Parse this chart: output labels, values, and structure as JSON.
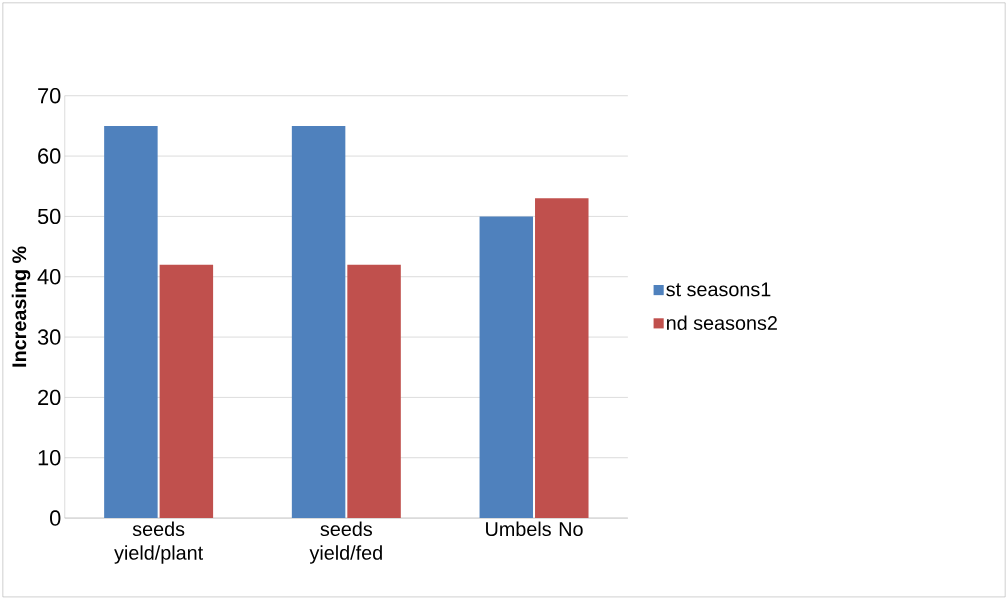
{
  "chart_data": {
    "type": "bar",
    "ylabel": "Increasing %",
    "categories": [
      "seeds yield/plant",
      "seeds yield/fed",
      "Umbels No"
    ],
    "series": [
      {
        "name": "st seasons1",
        "color": "#4f81bd",
        "values": [
          65,
          65,
          50
        ]
      },
      {
        "name": "nd seasons2",
        "color": "#c0504d",
        "values": [
          42,
          42,
          53
        ]
      }
    ],
    "ylim": [
      0,
      70
    ],
    "yticks": [
      0,
      10,
      20,
      30,
      40,
      50,
      60,
      70
    ],
    "grid": "y",
    "legend": "right"
  }
}
